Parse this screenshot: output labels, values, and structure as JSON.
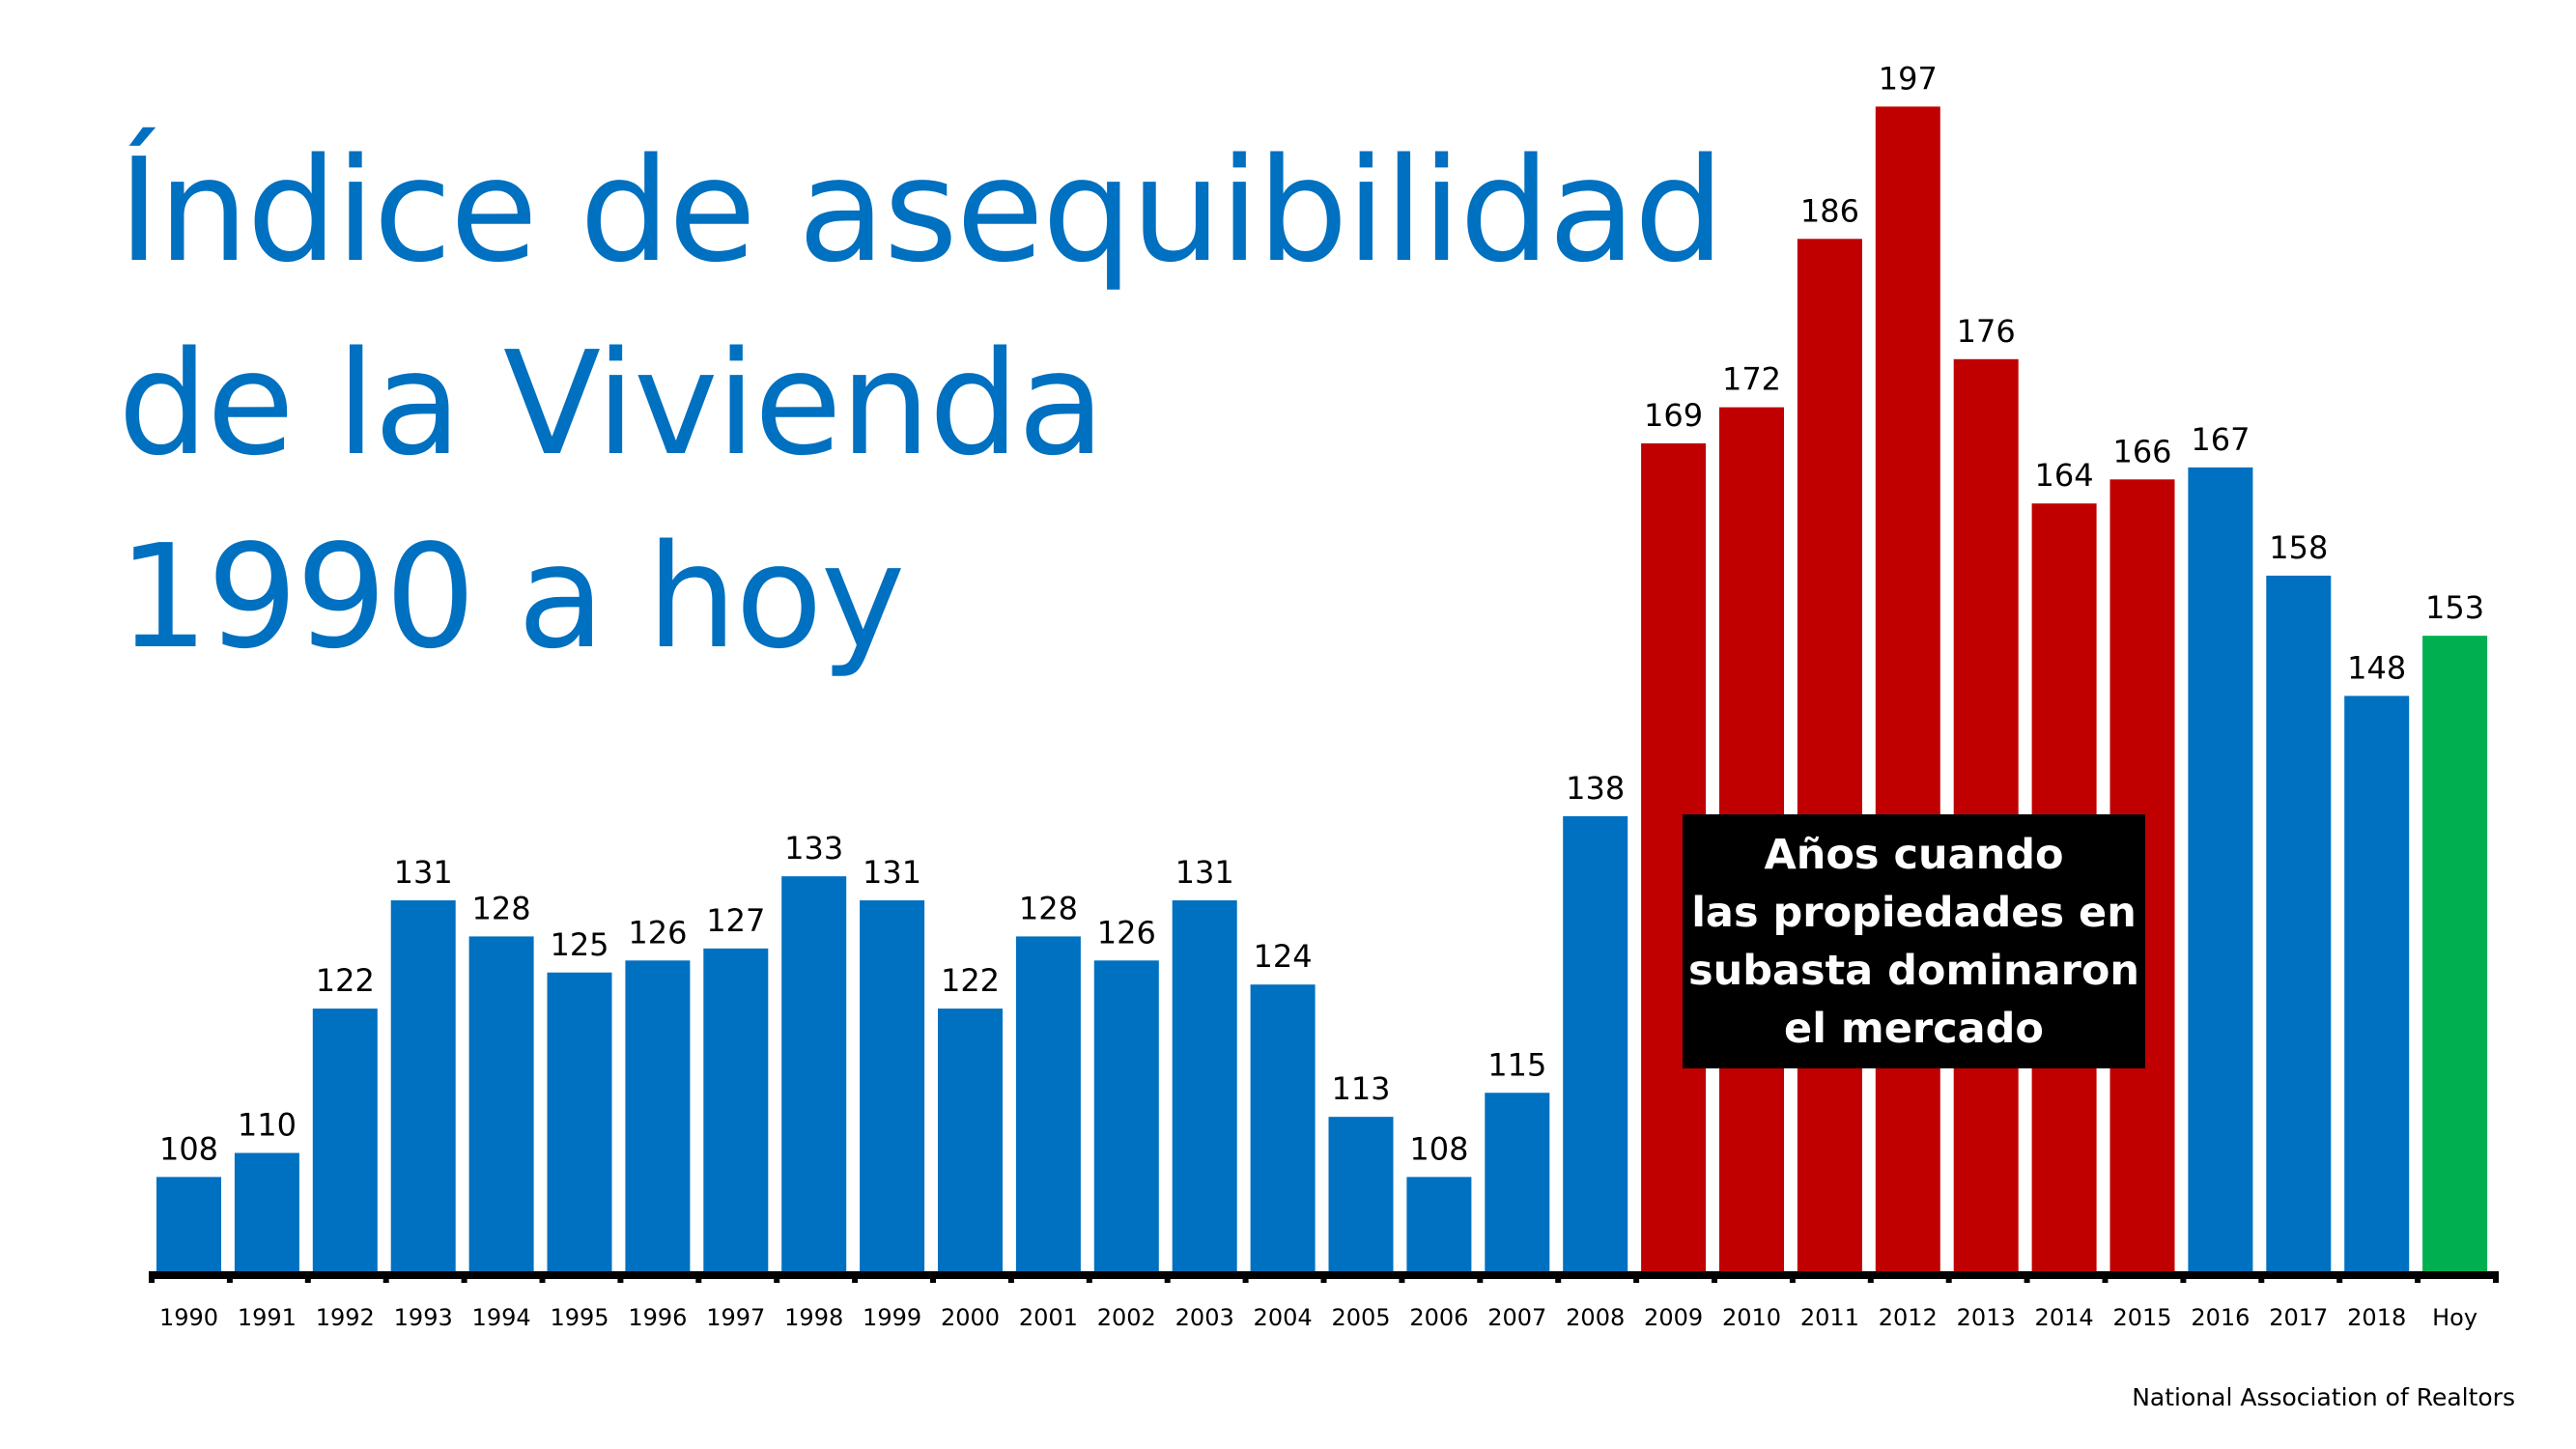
{
  "title": {
    "line1": "Índice de asequibilidad",
    "line2": "de la Vivienda",
    "line3": "1990 a hoy"
  },
  "callout": {
    "line1": "Años cuando",
    "line2": "las propiedades en",
    "line3": "subasta dominaron",
    "line4": "el mercado"
  },
  "source": "National Association of Realtors",
  "colors": {
    "normal": "#0070C0",
    "foreclosure": "#C00000",
    "today": "#00B050",
    "title": "#0070C0"
  },
  "chart_data": {
    "type": "bar",
    "title": "Índice de asequibilidad de la Vivienda 1990 a hoy",
    "xlabel": "",
    "ylabel": "",
    "ylim": [
      100,
      200
    ],
    "grid": false,
    "categories": [
      "1990",
      "1991",
      "1992",
      "1993",
      "1994",
      "1995",
      "1996",
      "1997",
      "1998",
      "1999",
      "2000",
      "2001",
      "2002",
      "2003",
      "2004",
      "2005",
      "2006",
      "2007",
      "2008",
      "2009",
      "2010",
      "2011",
      "2012",
      "2013",
      "2014",
      "2015",
      "2016",
      "2017",
      "2018",
      "Hoy"
    ],
    "values": [
      108,
      110,
      122,
      131,
      128,
      125,
      126,
      127,
      133,
      131,
      122,
      128,
      126,
      131,
      124,
      113,
      108,
      115,
      138,
      169,
      172,
      186,
      197,
      176,
      164,
      166,
      167,
      158,
      148,
      153
    ],
    "bar_groups": [
      "normal",
      "normal",
      "normal",
      "normal",
      "normal",
      "normal",
      "normal",
      "normal",
      "normal",
      "normal",
      "normal",
      "normal",
      "normal",
      "normal",
      "normal",
      "normal",
      "normal",
      "normal",
      "normal",
      "foreclosure",
      "foreclosure",
      "foreclosure",
      "foreclosure",
      "foreclosure",
      "foreclosure",
      "foreclosure",
      "normal",
      "normal",
      "normal",
      "today"
    ],
    "data_labels": true
  }
}
